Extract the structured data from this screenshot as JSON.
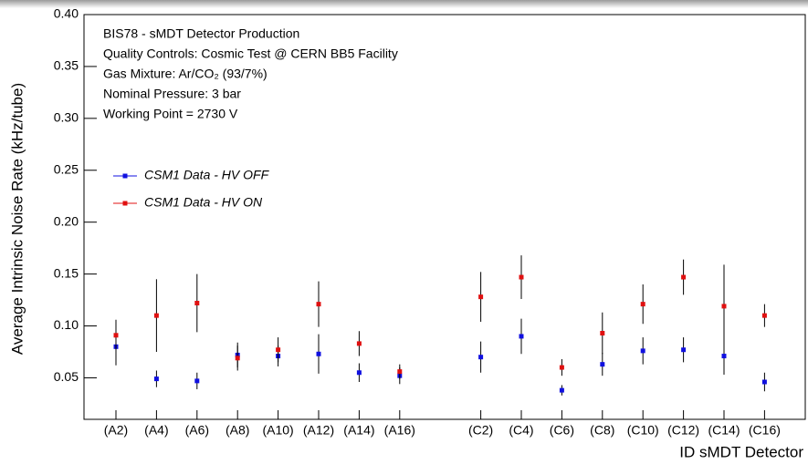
{
  "chart_data": {
    "type": "scatter",
    "annotations": [
      "BIS78 - sMDT Detector Production",
      "Quality Controls: Cosmic Test @ CERN BB5 Facility",
      "Gas Mixture: Ar/CO₂ (93/7%)",
      "Nominal Pressure: 3 bar",
      "Working Point = 2730 V"
    ],
    "x_label": "ID sMDT Detector",
    "y_label": "Average Intrinsic Noise Rate (kHz/tube)",
    "categories": [
      "(A2)",
      "(A4)",
      "(A6)",
      "(A8)",
      "(A10)",
      "(A12)",
      "(A14)",
      "(A16)",
      null,
      "(C2)",
      "(C4)",
      "(C6)",
      "(C8)",
      "(C10)",
      "(C12)",
      "(C14)",
      "(C16)"
    ],
    "series": [
      {
        "name": "CSM1 Data - HV OFF",
        "color": "#1010e0",
        "values": [
          0.08,
          0.049,
          0.047,
          0.072,
          0.071,
          0.073,
          0.055,
          0.052,
          null,
          0.07,
          0.09,
          0.038,
          0.063,
          0.076,
          0.077,
          0.071,
          0.046
        ],
        "errors": [
          0.018,
          0.008,
          0.008,
          0.012,
          0.01,
          0.019,
          0.009,
          0.008,
          null,
          0.015,
          0.017,
          0.005,
          0.011,
          0.013,
          0.012,
          0.018,
          0.009
        ]
      },
      {
        "name": "CSM1 Data - HV ON",
        "color": "#e01010",
        "values": [
          0.091,
          0.11,
          0.122,
          0.069,
          0.077,
          0.121,
          0.083,
          0.056,
          null,
          0.128,
          0.147,
          0.06,
          0.093,
          0.121,
          0.147,
          0.119,
          0.11
        ],
        "errors": [
          0.015,
          0.035,
          0.028,
          0.012,
          0.012,
          0.022,
          0.012,
          0.007,
          null,
          0.024,
          0.021,
          0.008,
          0.02,
          0.019,
          0.017,
          0.04,
          0.011
        ]
      }
    ],
    "ylim": [
      0.01,
      0.4
    ],
    "yticks": [
      0.05,
      {
        "value": 0.1,
        "label": "0.10"
      },
      0.15,
      {
        "value": 0.2,
        "label": "0.20"
      },
      0.25,
      {
        "value": 0.3,
        "label": "0.30"
      },
      0.35,
      {
        "value": 0.4,
        "label": "0.40"
      }
    ],
    "legend": "upper-left"
  }
}
